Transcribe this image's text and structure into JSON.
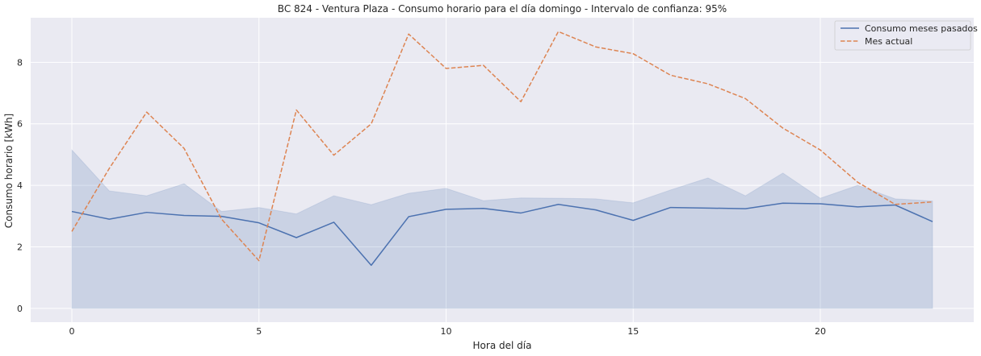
{
  "chart_data": {
    "type": "line",
    "title": "BC 824 - Ventura Plaza - Consumo horario para el día domingo - Intervalo de confianza: 95%",
    "xlabel": "Hora del día",
    "ylabel": "Consumo horario [kWh]",
    "x": [
      0,
      1,
      2,
      3,
      4,
      5,
      6,
      7,
      8,
      9,
      10,
      11,
      12,
      13,
      14,
      15,
      16,
      17,
      18,
      19,
      20,
      21,
      22,
      23
    ],
    "xticks": [
      0,
      5,
      10,
      15,
      20
    ],
    "yticks": [
      0,
      2,
      4,
      6,
      8
    ],
    "xlim": [
      -1.1,
      24.1
    ],
    "ylim": [
      -0.45,
      9.45
    ],
    "grid": true,
    "legend_position": "top-right",
    "series": [
      {
        "name": "Consumo meses pasados",
        "color": "#4c72b0",
        "style": "solid",
        "values": [
          3.15,
          2.9,
          3.12,
          3.02,
          2.99,
          2.78,
          2.3,
          2.8,
          1.4,
          2.98,
          3.22,
          3.25,
          3.1,
          3.38,
          3.2,
          2.86,
          3.28,
          3.26,
          3.24,
          3.42,
          3.4,
          3.3,
          3.36,
          2.82
        ],
        "ci_lower": [
          0,
          0,
          0,
          0,
          0,
          0,
          0,
          0,
          0,
          0,
          0,
          0,
          0,
          0,
          0,
          0,
          0,
          0,
          0,
          0,
          0,
          0,
          0,
          0
        ],
        "ci_upper": [
          5.15,
          3.82,
          3.66,
          4.05,
          3.15,
          3.28,
          3.07,
          3.66,
          3.37,
          3.74,
          3.9,
          3.5,
          3.59,
          3.58,
          3.56,
          3.43,
          3.85,
          4.24,
          3.66,
          4.4,
          3.58,
          4.0,
          3.56,
          3.49
        ]
      },
      {
        "name": "Mes actual",
        "color": "#dd8452",
        "style": "dashed",
        "values": [
          2.5,
          4.55,
          6.38,
          5.2,
          2.9,
          1.55,
          6.45,
          4.98,
          6.0,
          8.92,
          7.8,
          7.9,
          6.72,
          9.0,
          8.5,
          8.28,
          7.58,
          7.3,
          6.82,
          5.86,
          5.15,
          4.1,
          3.38,
          3.46
        ]
      }
    ]
  }
}
